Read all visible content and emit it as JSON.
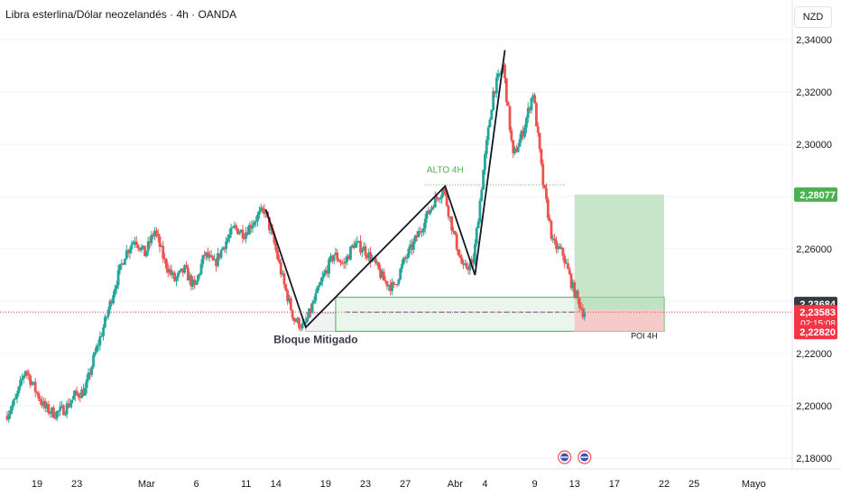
{
  "header": {
    "title": "Libra esterlina/Dólar neozelandés · 4h · OANDA",
    "currency": "NZD"
  },
  "colors": {
    "up": "#26a69a",
    "down": "#ef5350",
    "target_zone": "#a5d6a7",
    "stop_zone": "#f8bbbc",
    "poi_zone": "#e8f5e9",
    "poi_border": "#4caf50",
    "pattern_line": "#131722",
    "level_green": "#4caf50",
    "level_red": "#f23645",
    "level_dark": "#363a45"
  },
  "chart_data": {
    "type": "candlestick",
    "title": "Libra esterlina/Dólar neozelandés · 4h · OANDA",
    "currency": "NZD",
    "ylim": [
      2.175,
      2.345
    ],
    "y_ticks": [
      "2,34000",
      "2,32000",
      "2,30000",
      "2,28000",
      "2,26000",
      "2,24000",
      "2,22000",
      "2,20000",
      "2,18000"
    ],
    "x_ticks": [
      "19",
      "23",
      "Mar",
      "6",
      "11",
      "14",
      "19",
      "23",
      "27",
      "Abr",
      "4",
      "9",
      "13",
      "17",
      "22",
      "25",
      "Mayo"
    ],
    "price_path": [
      {
        "date": "Feb 16",
        "close": 2.196
      },
      {
        "date": "Feb 17",
        "close": 2.202
      },
      {
        "date": "Feb 18",
        "close": 2.214
      },
      {
        "date": "Feb 19",
        "close": 2.206
      },
      {
        "date": "Feb 20",
        "close": 2.199
      },
      {
        "date": "Feb 21",
        "close": 2.197
      },
      {
        "date": "Feb 22",
        "close": 2.199
      },
      {
        "date": "Feb 23",
        "close": 2.204
      },
      {
        "date": "Feb 24",
        "close": 2.206
      },
      {
        "date": "Feb 25",
        "close": 2.22
      },
      {
        "date": "Feb 26",
        "close": 2.232
      },
      {
        "date": "Feb 27",
        "close": 2.246
      },
      {
        "date": "Feb 28",
        "close": 2.258
      },
      {
        "date": "Feb 29",
        "close": 2.264
      },
      {
        "date": "Mar 1",
        "close": 2.258
      },
      {
        "date": "Mar 2",
        "close": 2.267
      },
      {
        "date": "Mar 3",
        "close": 2.255
      },
      {
        "date": "Mar 4",
        "close": 2.248
      },
      {
        "date": "Mar 5",
        "close": 2.252
      },
      {
        "date": "Mar 6",
        "close": 2.245
      },
      {
        "date": "Mar 7",
        "close": 2.258
      },
      {
        "date": "Mar 8",
        "close": 2.254
      },
      {
        "date": "Mar 9",
        "close": 2.262
      },
      {
        "date": "Mar 10",
        "close": 2.268
      },
      {
        "date": "Mar 11",
        "close": 2.266
      },
      {
        "date": "Mar 12",
        "close": 2.271
      },
      {
        "date": "Mar 13",
        "close": 2.275
      },
      {
        "date": "Mar 14",
        "close": 2.262
      },
      {
        "date": "Mar 15",
        "close": 2.246
      },
      {
        "date": "Mar 16",
        "close": 2.233
      },
      {
        "date": "Mar 17",
        "close": 2.23
      },
      {
        "date": "Mar 18",
        "close": 2.24
      },
      {
        "date": "Mar 19",
        "close": 2.25
      },
      {
        "date": "Mar 20",
        "close": 2.258
      },
      {
        "date": "Mar 21",
        "close": 2.254
      },
      {
        "date": "Mar 22",
        "close": 2.262
      },
      {
        "date": "Mar 23",
        "close": 2.26
      },
      {
        "date": "Mar 24",
        "close": 2.255
      },
      {
        "date": "Mar 25",
        "close": 2.248
      },
      {
        "date": "Mar 26",
        "close": 2.245
      },
      {
        "date": "Mar 27",
        "close": 2.255
      },
      {
        "date": "Mar 28",
        "close": 2.262
      },
      {
        "date": "Mar 29",
        "close": 2.27
      },
      {
        "date": "Mar 30",
        "close": 2.278
      },
      {
        "date": "Mar 31",
        "close": 2.283
      },
      {
        "date": "Apr 1",
        "close": 2.266
      },
      {
        "date": "Apr 2",
        "close": 2.252
      },
      {
        "date": "Apr 3",
        "close": 2.255
      },
      {
        "date": "Apr 4",
        "close": 2.29
      },
      {
        "date": "Apr 5",
        "close": 2.32
      },
      {
        "date": "Apr 6",
        "close": 2.33
      },
      {
        "date": "Apr 7",
        "close": 2.295
      },
      {
        "date": "Apr 8",
        "close": 2.305
      },
      {
        "date": "Apr 9",
        "close": 2.32
      },
      {
        "date": "Apr 10",
        "close": 2.285
      },
      {
        "date": "Apr 11",
        "close": 2.262
      },
      {
        "date": "Apr 12",
        "close": 2.258
      },
      {
        "date": "Apr 13",
        "close": 2.245
      },
      {
        "date": "Apr 14",
        "close": 2.236
      }
    ],
    "pattern_line": [
      {
        "date": "Mar 13",
        "price": 2.275
      },
      {
        "date": "Mar 17",
        "price": 2.23
      },
      {
        "date": "Mar 31",
        "price": 2.284
      },
      {
        "date": "Apr 3",
        "price": 2.25
      },
      {
        "date": "Apr 6",
        "price": 2.336
      }
    ],
    "annotations": [
      {
        "text": "ALTO 4H",
        "date": "Mar 31",
        "price": 2.287
      },
      {
        "text": "Bloque Mitigado",
        "date": "Mar 18",
        "price": 2.224
      },
      {
        "text": "POI 4H",
        "date": "Apr 20",
        "price": 2.2257
      }
    ],
    "zones": [
      {
        "name": "Bloque Mitigado zone",
        "from": "Mar 17",
        "to": "Mar 20",
        "low": 2.2285,
        "high": 2.2355
      },
      {
        "name": "POI 4H",
        "from": "Mar 20",
        "to": "Apr 22",
        "low": 2.2285,
        "high": 2.2415
      },
      {
        "name": "target",
        "from": "Apr 13",
        "to": "Apr 22",
        "low": 2.2368,
        "high": 2.2808
      },
      {
        "name": "stop",
        "from": "Apr 13",
        "to": "Apr 22",
        "low": 2.2282,
        "high": 2.2368
      }
    ],
    "levels": [
      {
        "name": "alto_4h",
        "price": 2.2845,
        "style": "dotted"
      },
      {
        "name": "entry",
        "price": 2.2358,
        "style": "dashed"
      },
      {
        "name": "last",
        "price": 2.23583,
        "style": "dotted"
      }
    ],
    "price_labels": [
      {
        "text": "2,28077",
        "price": 2.28077,
        "color": "green"
      },
      {
        "text": "2,23684",
        "price": 2.23684,
        "color": "dark"
      },
      {
        "text": "2,23583",
        "price": 2.23583,
        "color": "red",
        "sub": "02:15:08"
      },
      {
        "text": "2,22820",
        "price": 2.2282,
        "color": "red"
      }
    ],
    "grid": true
  }
}
